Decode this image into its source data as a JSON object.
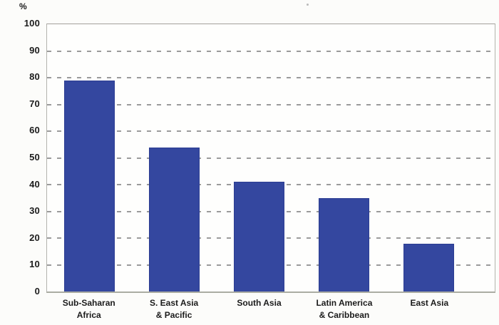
{
  "chart_data": {
    "type": "bar",
    "title": "",
    "xlabel": "",
    "ylabel": "%",
    "ylim": [
      0,
      100
    ],
    "ytick_step": 10,
    "grid": "horizontal-dashed",
    "legend": "none",
    "categories": [
      "Sub-Saharan\nAfrica",
      "S. East Asia\n& Pacific",
      "South Asia",
      "Latin America\n& Caribbean",
      "East Asia"
    ],
    "values": [
      79,
      54,
      41,
      35,
      18
    ],
    "colors": {
      "bar": "#34479f",
      "bar_border": "#2c3d92",
      "gridline": "#9b9b9b",
      "frame": "#b3b3ad",
      "text": "#1b1b1b",
      "background": "#fcfcfa"
    }
  }
}
